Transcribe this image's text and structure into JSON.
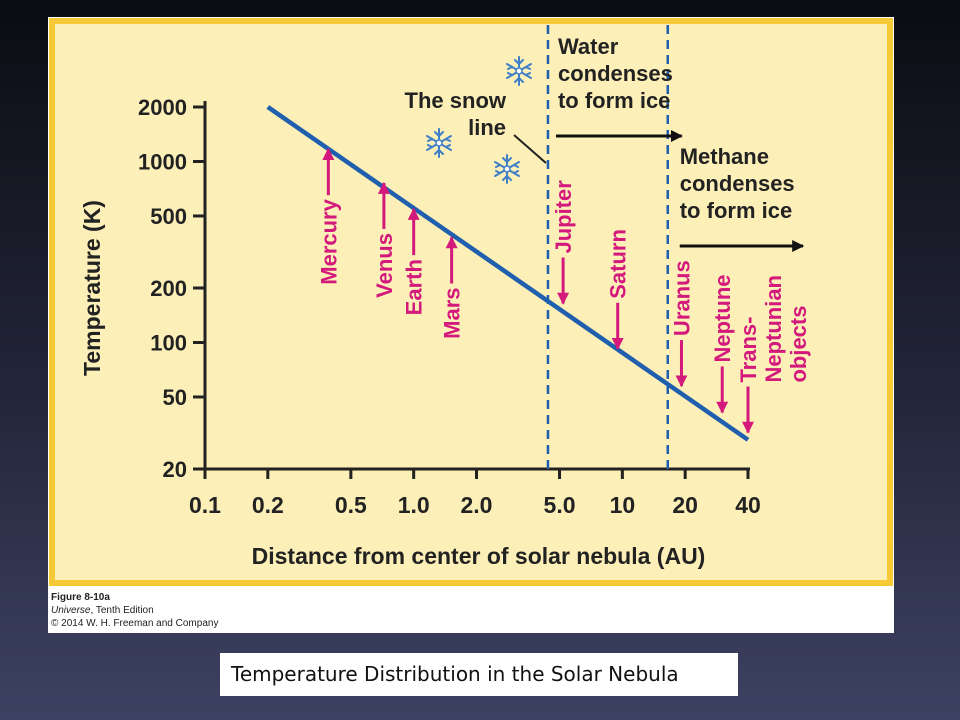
{
  "figure": {
    "figure_label": "Figure 8-10a",
    "book_title": "Universe",
    "book_edition": ", Tenth Edition",
    "copyright": "© 2014 W. H. Freeman and Company"
  },
  "caption": "Temperature Distribution in the Solar Nebula",
  "chart_data": {
    "type": "line",
    "title": "",
    "xlabel": "Distance from center of solar nebula (AU)",
    "ylabel": "Temperature (K)",
    "x_scale": "log",
    "y_scale": "log",
    "xlim": [
      0.1,
      40
    ],
    "ylim": [
      20,
      2000
    ],
    "x_ticks": [
      {
        "value": 0.1,
        "label": "0.1"
      },
      {
        "value": 0.2,
        "label": "0.2"
      },
      {
        "value": 0.5,
        "label": "0.5"
      },
      {
        "value": 1.0,
        "label": "1.0"
      },
      {
        "value": 2.0,
        "label": "2.0"
      },
      {
        "value": 5.0,
        "label": "5.0"
      },
      {
        "value": 10,
        "label": "10"
      },
      {
        "value": 20,
        "label": "20"
      },
      {
        "value": 40,
        "label": "40"
      }
    ],
    "y_ticks": [
      {
        "value": 2000,
        "label": "2000"
      },
      {
        "value": 1000,
        "label": "1000"
      },
      {
        "value": 500,
        "label": "500"
      },
      {
        "value": 200,
        "label": "200"
      },
      {
        "value": 100,
        "label": "100"
      },
      {
        "value": 50,
        "label": "50"
      },
      {
        "value": 20,
        "label": "20"
      }
    ],
    "grid": false,
    "series": [
      {
        "x": [
          0.2,
          40
        ],
        "y": [
          2000,
          29
        ],
        "color": "#1f5fae"
      }
    ],
    "planets": [
      {
        "name": "Mercury",
        "x": 0.39,
        "tip_y": 1200,
        "direction": "up"
      },
      {
        "name": "Venus",
        "x": 0.72,
        "tip_y": 780,
        "direction": "up"
      },
      {
        "name": "Earth",
        "x": 1.0,
        "tip_y": 560,
        "direction": "up"
      },
      {
        "name": "Mars",
        "x": 1.52,
        "tip_y": 390,
        "direction": "up"
      },
      {
        "name": "Jupiter",
        "x": 5.2,
        "tip_y": 160,
        "direction": "down"
      },
      {
        "name": "Saturn",
        "x": 9.5,
        "tip_y": 90,
        "direction": "down"
      },
      {
        "name": "Uranus",
        "x": 19.2,
        "tip_y": 56,
        "direction": "down"
      },
      {
        "name": "Neptune",
        "x": 30.1,
        "tip_y": 40,
        "direction": "down"
      },
      {
        "name": "Trans-\nNeptunian\nobjects",
        "x": 40,
        "tip_y": 31,
        "direction": "down"
      }
    ],
    "planet_color": "#d4197c",
    "lines_color": "#1f5fae",
    "snow_line_x": 4.4,
    "methane_line_x": 16.5,
    "annotations": {
      "snow_line": "The snow\nline",
      "water": "Water\ncondenses\nto form ice",
      "methane": "Methane\ncondenses\nto form ice"
    },
    "panel_color": "#fcefb8",
    "panel_border_color": "#f6c936"
  }
}
